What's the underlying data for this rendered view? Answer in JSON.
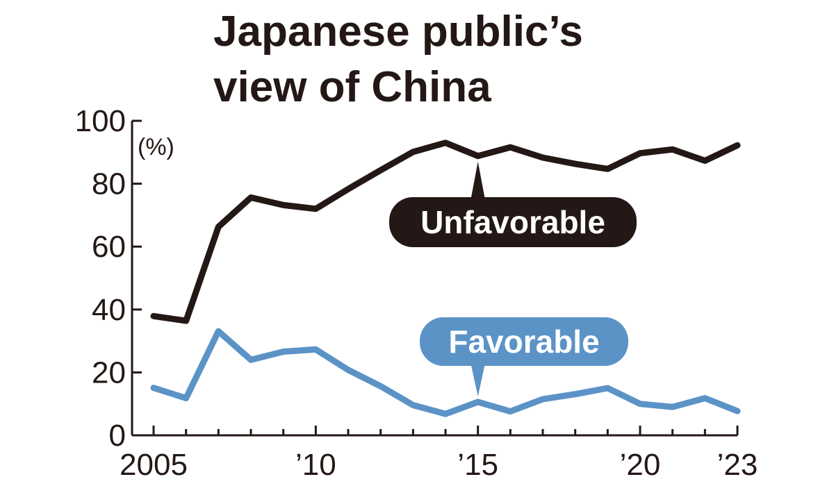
{
  "chart_data": {
    "type": "line",
    "title_lines": [
      "Japanese public’s",
      "view of China"
    ],
    "unit_label": "(%)",
    "x": [
      2005,
      2006,
      2007,
      2008,
      2009,
      2010,
      2011,
      2012,
      2013,
      2014,
      2015,
      2016,
      2017,
      2018,
      2019,
      2020,
      2021,
      2022,
      2023
    ],
    "xlim": [
      2005,
      2023
    ],
    "x_ticks": [
      {
        "value": 2005,
        "label": "2005"
      },
      {
        "value": 2010,
        "label": "’10"
      },
      {
        "value": 2015,
        "label": "’15"
      },
      {
        "value": 2020,
        "label": "’20"
      },
      {
        "value": 2023,
        "label": "’23"
      }
    ],
    "ylim": [
      0,
      100
    ],
    "y_ticks": [
      0,
      20,
      40,
      60,
      80,
      100
    ],
    "grid": false,
    "series": [
      {
        "name": "Unfavorable",
        "color": "#231815",
        "values": [
          37.9,
          36.4,
          66.3,
          75.6,
          73.2,
          72.0,
          78.3,
          84.3,
          90.1,
          93.0,
          88.8,
          91.6,
          88.3,
          86.3,
          84.7,
          89.7,
          90.9,
          87.3,
          92.2
        ],
        "callout_anchor": {
          "x": 2015,
          "y": 88.8
        }
      },
      {
        "name": "Favorable",
        "color": "#5b93c7",
        "values": [
          15.1,
          11.8,
          33.1,
          24.0,
          26.6,
          27.3,
          20.8,
          15.6,
          9.6,
          6.8,
          10.6,
          7.6,
          11.5,
          13.1,
          15.0,
          10.0,
          9.0,
          11.8,
          7.7
        ],
        "callout_anchor": {
          "x": 2015,
          "y": 10.6
        }
      }
    ]
  }
}
